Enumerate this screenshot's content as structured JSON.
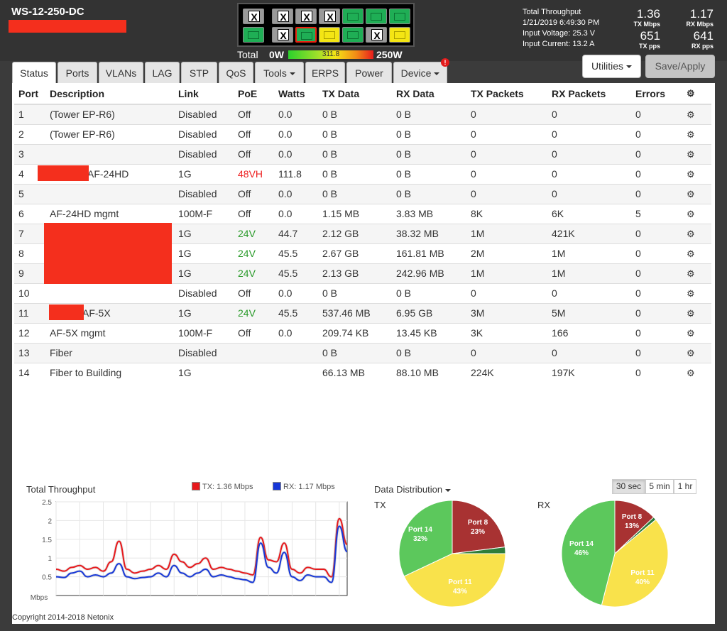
{
  "header": {
    "hostname": "WS-12-250-DC",
    "power": {
      "total_label": "Total",
      "min_label": "0W",
      "value": "311.8",
      "max_label": "250W"
    },
    "throughput": {
      "title": "Total Throughput",
      "datetime": "1/21/2019 6:49:30 PM",
      "voltage": "Input Voltage: 25.3 V",
      "current": "Input Current: 13.2 A",
      "tx_mbps": "1.36",
      "tx_mbps_label": "TX Mbps",
      "rx_mbps": "1.17",
      "rx_mbps_label": "RX Mbps",
      "tx_pps": "651",
      "tx_pps_label": "TX pps",
      "rx_pps": "641",
      "rx_pps_label": "RX pps"
    },
    "port_panel": {
      "x_symbol": "X"
    }
  },
  "tabs": [
    "Status",
    "Ports",
    "VLANs",
    "LAG",
    "STP",
    "QoS",
    "Tools",
    "ERPS",
    "Power",
    "Device"
  ],
  "device_badge": "!",
  "buttons": {
    "utilities": "Utilities",
    "save": "Save/Apply"
  },
  "table": {
    "headers": [
      "Port",
      "Description",
      "Link",
      "PoE",
      "Watts",
      "TX Data",
      "RX Data",
      "TX Packets",
      "RX Packets",
      "Errors"
    ],
    "rows": [
      {
        "port": "1",
        "desc": "(Tower EP-R6)",
        "link": "Disabled",
        "poe": "Off",
        "watts": "0.0",
        "tx": "0 B",
        "rx": "0 B",
        "txp": "0",
        "rxp": "0",
        "err": "0"
      },
      {
        "port": "2",
        "desc": "(Tower EP-R6)",
        "link": "Disabled",
        "poe": "Off",
        "watts": "0.0",
        "tx": "0 B",
        "rx": "0 B",
        "txp": "0",
        "rxp": "0",
        "err": "0"
      },
      {
        "port": "3",
        "desc": "",
        "link": "Disabled",
        "poe": "Off",
        "watts": "0.0",
        "tx": "0 B",
        "rx": "0 B",
        "txp": "0",
        "rxp": "0",
        "err": "0"
      },
      {
        "port": "4",
        "desc": "AF-24HD",
        "link": "1G",
        "poe": "48VH",
        "watts": "111.8",
        "tx": "0 B",
        "rx": "0 B",
        "txp": "0",
        "rxp": "0",
        "err": "0"
      },
      {
        "port": "5",
        "desc": "",
        "link": "Disabled",
        "poe": "Off",
        "watts": "0.0",
        "tx": "0 B",
        "rx": "0 B",
        "txp": "0",
        "rxp": "0",
        "err": "0"
      },
      {
        "port": "6",
        "desc": "AF-24HD mgmt",
        "link": "100M-F",
        "poe": "Off",
        "watts": "0.0",
        "tx": "1.15 MB",
        "rx": "3.83 MB",
        "txp": "8K",
        "rxp": "6K",
        "err": "5"
      },
      {
        "port": "7",
        "desc": "",
        "link": "1G",
        "poe": "24V",
        "watts": "44.7",
        "tx": "2.12 GB",
        "rx": "38.32 MB",
        "txp": "1M",
        "rxp": "421K",
        "err": "0"
      },
      {
        "port": "8",
        "desc": "",
        "link": "1G",
        "poe": "24V",
        "watts": "45.5",
        "tx": "2.67 GB",
        "rx": "161.81 MB",
        "txp": "2M",
        "rxp": "1M",
        "err": "0"
      },
      {
        "port": "9",
        "desc": "",
        "link": "1G",
        "poe": "24V",
        "watts": "45.5",
        "tx": "2.13 GB",
        "rx": "242.96 MB",
        "txp": "1M",
        "rxp": "1M",
        "err": "0"
      },
      {
        "port": "10",
        "desc": "",
        "link": "Disabled",
        "poe": "Off",
        "watts": "0.0",
        "tx": "0 B",
        "rx": "0 B",
        "txp": "0",
        "rxp": "0",
        "err": "0"
      },
      {
        "port": "11",
        "desc": "AF-5X",
        "link": "1G",
        "poe": "24V",
        "watts": "45.5",
        "tx": "537.46 MB",
        "rx": "6.95 GB",
        "txp": "3M",
        "rxp": "5M",
        "err": "0"
      },
      {
        "port": "12",
        "desc": "AF-5X mgmt",
        "link": "100M-F",
        "poe": "Off",
        "watts": "0.0",
        "tx": "209.74 KB",
        "rx": "13.45 KB",
        "txp": "3K",
        "rxp": "166",
        "err": "0"
      },
      {
        "port": "13",
        "desc": "Fiber",
        "link": "Disabled",
        "poe": "",
        "watts": "",
        "tx": "0 B",
        "rx": "0 B",
        "txp": "0",
        "rxp": "0",
        "err": "0"
      },
      {
        "port": "14",
        "desc": "Fiber to Building",
        "link": "1G",
        "poe": "",
        "watts": "",
        "tx": "66.13 MB",
        "rx": "88.10 MB",
        "txp": "224K",
        "rxp": "197K",
        "err": "0"
      }
    ]
  },
  "colors": {
    "tx": "#e8191c",
    "rx": "#1637d8",
    "green": "#5cc85c",
    "yellow": "#f9e24b",
    "dark_red": "#a83232",
    "dark_green": "#2e7d3a",
    "poe_24v": "#2a9a2a",
    "poe_48vh": "#e22222"
  },
  "throughput_chart": {
    "title": "Total Throughput",
    "tx_legend": "TX: 1.36 Mbps",
    "rx_legend": "RX: 1.17 Mbps",
    "y_unit": "Mbps",
    "y_ticks": [
      "2.5",
      "2",
      "1.5",
      "1",
      "0.5"
    ]
  },
  "distribution": {
    "title": "Data Distribution",
    "tx_label": "TX",
    "rx_label": "RX",
    "ranges": [
      "30 sec",
      "5 min",
      "1 hr"
    ],
    "active_range": "30 sec"
  },
  "footer": "Copyright 2014-2018 Netonix",
  "chart_data": [
    {
      "type": "line",
      "title": "Total Throughput",
      "ylabel": "Mbps",
      "ylim": [
        0,
        2.5
      ],
      "grid": true,
      "series": [
        {
          "name": "TX: 1.36 Mbps",
          "values": [
            0.7,
            0.65,
            0.75,
            0.8,
            0.7,
            0.75,
            0.65,
            0.9,
            1.45,
            0.7,
            0.6,
            0.65,
            0.7,
            0.8,
            0.7,
            1.1,
            0.9,
            0.75,
            0.85,
            1.0,
            0.7,
            0.75,
            0.7,
            0.65,
            0.6,
            0.55,
            1.55,
            0.95,
            0.9,
            1.4,
            0.7,
            0.6,
            0.75,
            0.7,
            0.7,
            0.5,
            2.05,
            1.36
          ]
        },
        {
          "name": "RX: 1.17 Mbps",
          "values": [
            0.5,
            0.48,
            0.6,
            0.65,
            0.5,
            0.55,
            0.5,
            0.6,
            0.85,
            0.5,
            0.45,
            0.48,
            0.5,
            0.6,
            0.5,
            0.8,
            0.6,
            0.5,
            0.6,
            0.7,
            0.5,
            0.55,
            0.5,
            0.45,
            0.42,
            0.35,
            1.4,
            0.75,
            0.6,
            1.15,
            0.5,
            0.4,
            0.55,
            0.5,
            0.5,
            0.35,
            1.85,
            1.17
          ]
        }
      ]
    },
    {
      "type": "pie",
      "title": "TX",
      "categories": [
        "Port 8",
        "Port 11",
        "Port 14",
        "Other"
      ],
      "values": [
        23,
        43,
        32,
        2
      ]
    },
    {
      "type": "pie",
      "title": "RX",
      "categories": [
        "Port 8",
        "Port 11",
        "Port 14",
        "Other"
      ],
      "values": [
        13,
        40,
        46,
        1
      ]
    }
  ]
}
